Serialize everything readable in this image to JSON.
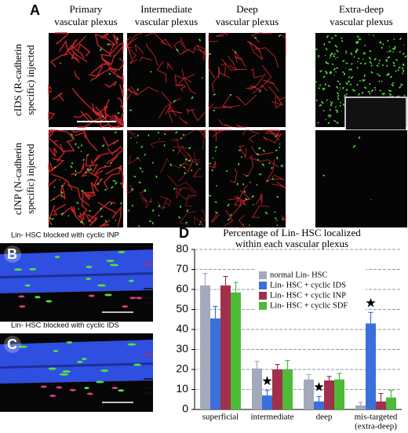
{
  "figure": {
    "panel_a": {
      "label": "A",
      "columns": [
        [
          "Primary",
          "vascular plexus"
        ],
        [
          "Intermediate",
          "vascular plexus"
        ],
        [
          "Deep",
          "vascular plexus"
        ],
        [
          "Extra-deep",
          "vascular plexus"
        ]
      ],
      "rows": [
        [
          "cIDS (R-cadherin",
          "specific) injected"
        ],
        [
          "cINP (N-cadherin",
          "specific) injected"
        ]
      ]
    },
    "panel_b": {
      "label": "B",
      "caption": "Lin- HSC  blocked with cyclic INP"
    },
    "panel_c": {
      "label": "C",
      "caption": "Lin- HSC  blocked with cyclic IDS"
    },
    "panel_d": {
      "label": "D"
    }
  },
  "chart_data": {
    "type": "bar",
    "title": [
      "Percentage of Lin- HSC  localized",
      "within each vascular plexus"
    ],
    "categories": [
      [
        "superficial"
      ],
      [
        "intermediate"
      ],
      [
        "deep"
      ],
      [
        "mis-targeted",
        "(extra-deep)"
      ]
    ],
    "series": [
      {
        "name": "normal Lin- HSC",
        "color": "#a3aabb",
        "values": [
          62,
          20.5,
          15,
          2
        ],
        "errors": [
          6,
          3.5,
          2.5,
          1.5
        ],
        "star": [
          false,
          false,
          false,
          false
        ]
      },
      {
        "name": "Lin- HSC  + cyclic IDS",
        "color": "#3b6fdc",
        "values": [
          45.5,
          7,
          4,
          43
        ],
        "errors": [
          6,
          2.5,
          2.5,
          5.5
        ],
        "star": [
          false,
          true,
          true,
          true
        ]
      },
      {
        "name": "Lin- HSC  + cyclic INP",
        "color": "#a0304c",
        "values": [
          62,
          20,
          14.5,
          4
        ],
        "errors": [
          4.5,
          2.5,
          2,
          4
        ],
        "star": [
          false,
          false,
          false,
          false
        ]
      },
      {
        "name": "Lin- HSC  + cyclic SDF",
        "color": "#4dbb35",
        "values": [
          58.5,
          20,
          15,
          6
        ],
        "errors": [
          5,
          4.5,
          3,
          3.5
        ],
        "star": [
          false,
          false,
          false,
          false
        ]
      }
    ],
    "ylim": [
      0,
      80
    ],
    "yticks": [
      0,
      10,
      20,
      30,
      40,
      50,
      60,
      70,
      80
    ],
    "grid": true
  }
}
